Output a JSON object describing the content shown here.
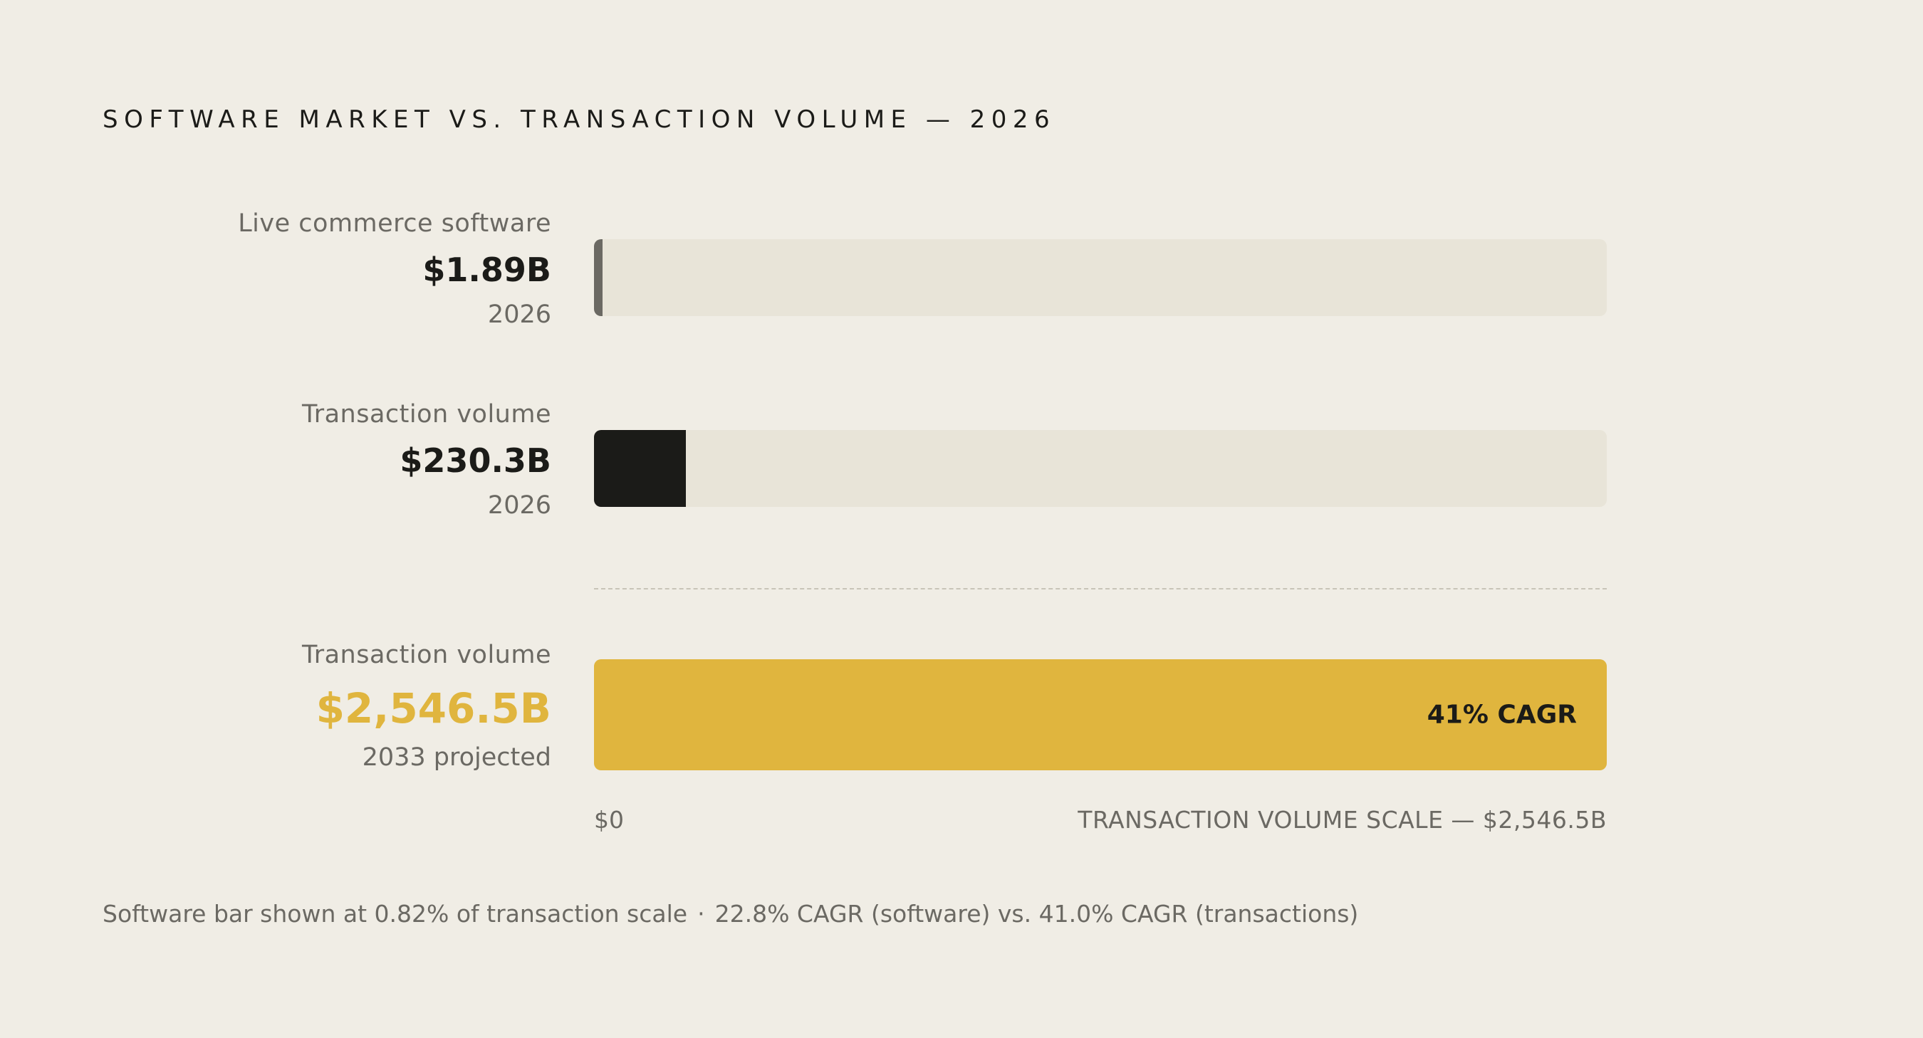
{
  "chart_data": {
    "type": "bar",
    "title": "SOFTWARE MARKET VS. TRANSACTION VOLUME — 2026",
    "scale_max": 2546.5,
    "rows": [
      {
        "name": "Live commerce software",
        "value": 1.89,
        "value_label": "$1.89B",
        "period": "2026",
        "display_fraction": 0.0082,
        "color": "#6b6963"
      },
      {
        "name": "Transaction volume",
        "value": 230.3,
        "value_label": "$230.3B",
        "period": "2026",
        "color": "#1b1b18"
      },
      {
        "name": "Transaction volume",
        "value": 2546.5,
        "value_label": "$2,546.5B",
        "period": "2033 projected",
        "color": "#e0b53e",
        "bar_label": "41% CAGR"
      }
    ],
    "axis": {
      "min_label": "$0",
      "max_label": "TRANSACTION VOLUME SCALE — $2,546.5B"
    },
    "footnote": {
      "part1": "Software bar shown at 0.82% of transaction scale",
      "separator": "·",
      "part2": "22.8% CAGR (software) vs. 41.0% CAGR (transactions)"
    }
  }
}
